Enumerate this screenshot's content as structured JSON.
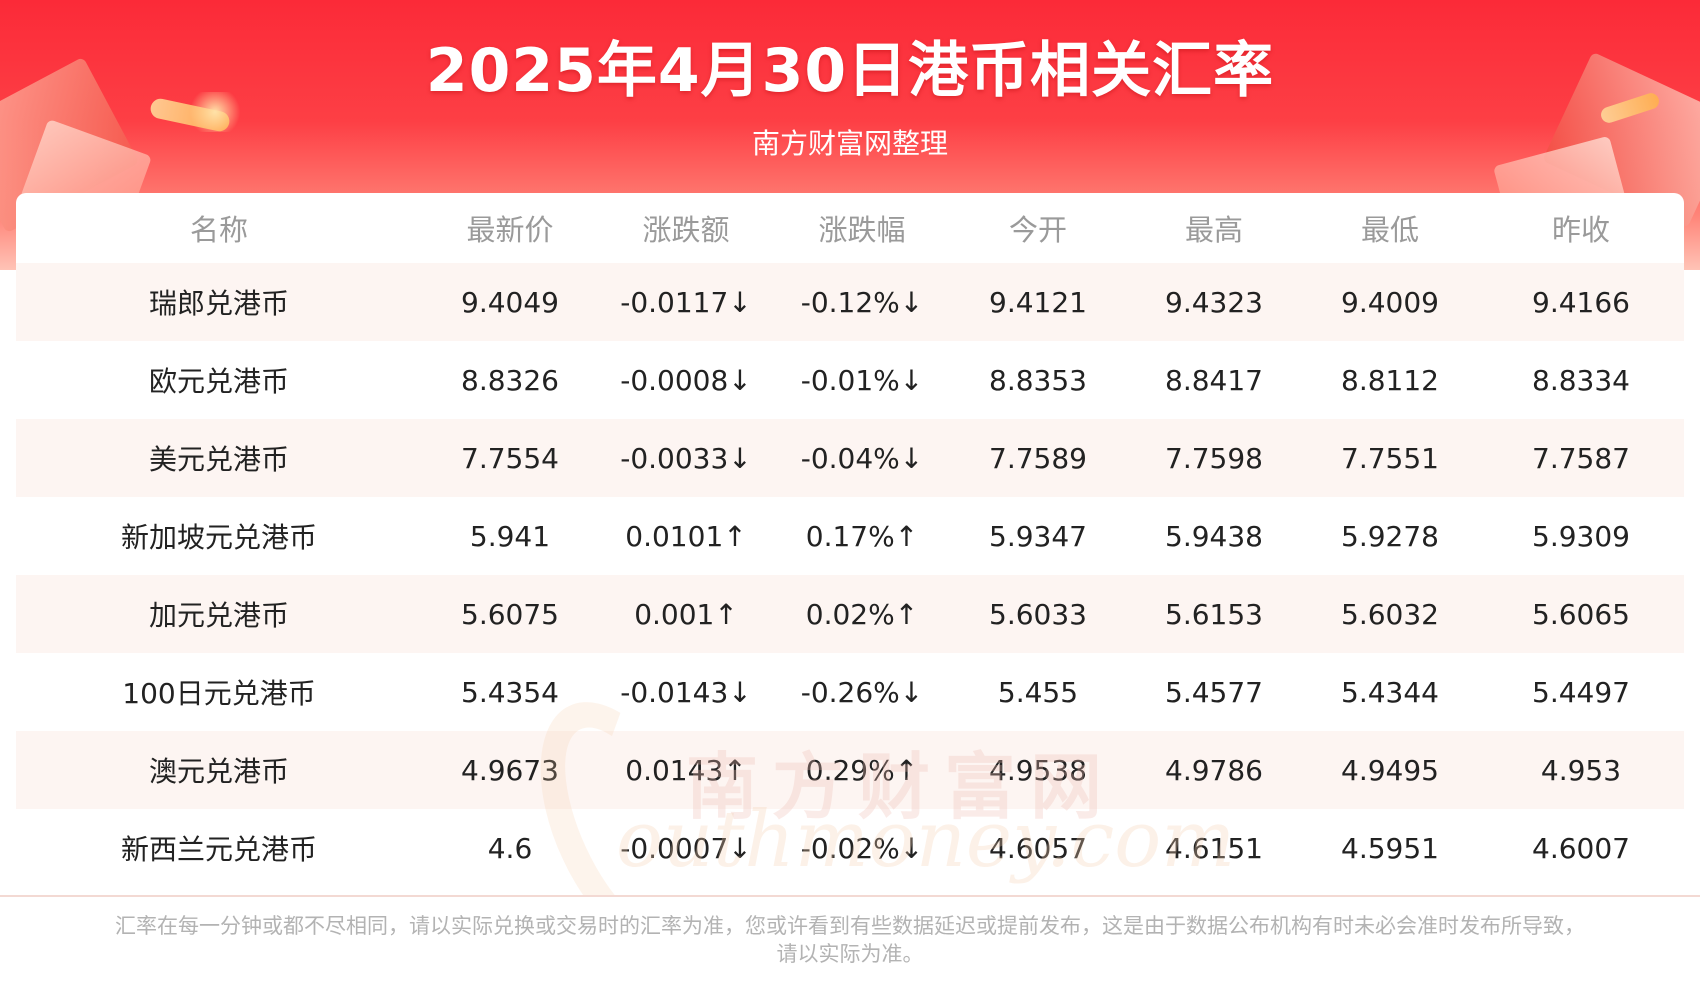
{
  "header": {
    "title": "2025年4月30日港币相关汇率",
    "subtitle": "南方财富网整理"
  },
  "watermark": {
    "cn": "南方财富网",
    "en": "outhmoney.com"
  },
  "table": {
    "columns": [
      "名称",
      "最新价",
      "涨跌额",
      "涨跌幅",
      "今开",
      "最高",
      "最低",
      "昨收"
    ],
    "rows": [
      {
        "name": "瑞郎兑港币",
        "latest": "9.4049",
        "change": "-0.0117↓",
        "pct": "-0.12%↓",
        "open": "9.4121",
        "high": "9.4323",
        "low": "9.4009",
        "prev": "9.4166",
        "trend": "down"
      },
      {
        "name": "欧元兑港币",
        "latest": "8.8326",
        "change": "-0.0008↓",
        "pct": "-0.01%↓",
        "open": "8.8353",
        "high": "8.8417",
        "low": "8.8112",
        "prev": "8.8334",
        "trend": "down"
      },
      {
        "name": "美元兑港币",
        "latest": "7.7554",
        "change": "-0.0033↓",
        "pct": "-0.04%↓",
        "open": "7.7589",
        "high": "7.7598",
        "low": "7.7551",
        "prev": "7.7587",
        "trend": "down"
      },
      {
        "name": "新加坡元兑港币",
        "latest": "5.941",
        "change": "0.0101↑",
        "pct": "0.17%↑",
        "open": "5.9347",
        "high": "5.9438",
        "low": "5.9278",
        "prev": "5.9309",
        "trend": "up"
      },
      {
        "name": "加元兑港币",
        "latest": "5.6075",
        "change": "0.001↑",
        "pct": "0.02%↑",
        "open": "5.6033",
        "high": "5.6153",
        "low": "5.6032",
        "prev": "5.6065",
        "trend": "up"
      },
      {
        "name": "100日元兑港币",
        "latest": "5.4354",
        "change": "-0.0143↓",
        "pct": "-0.26%↓",
        "open": "5.455",
        "high": "5.4577",
        "low": "5.4344",
        "prev": "5.4497",
        "trend": "down"
      },
      {
        "name": "澳元兑港币",
        "latest": "4.9673",
        "change": "0.0143↑",
        "pct": "0.29%↑",
        "open": "4.9538",
        "high": "4.9786",
        "low": "4.9495",
        "prev": "4.953",
        "trend": "up"
      },
      {
        "name": "新西兰元兑港币",
        "latest": "4.6",
        "change": "-0.0007↓",
        "pct": "-0.02%↓",
        "open": "4.6057",
        "high": "4.6151",
        "low": "4.5951",
        "prev": "4.6007",
        "trend": "down"
      }
    ]
  },
  "footnote": {
    "line1": "汇率在每一分钟或都不尽相同，请以实际兑换或交易时的汇率为准，您或许看到有些数据延迟或提前发布，这是由于数据公布机构有时未必会准时发布所导致，",
    "line2": "请以实际为准。"
  },
  "colors": {
    "up": "#e8161d",
    "down": "#1f8a1f",
    "header_red": "#fb2a38"
  }
}
